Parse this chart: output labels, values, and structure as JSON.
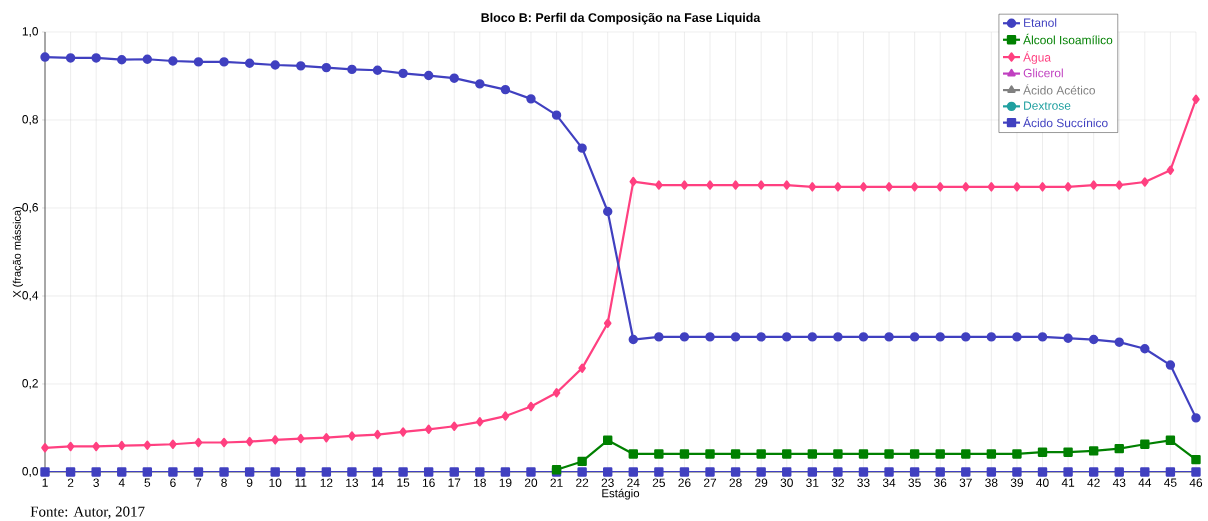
{
  "chart_data": {
    "type": "line",
    "title": "Bloco B: Perfil da Composição na Fase Liquida",
    "xlabel": "Estágio",
    "ylabel": "X (fração mássica)",
    "x": [
      1,
      2,
      3,
      4,
      5,
      6,
      7,
      8,
      9,
      10,
      11,
      12,
      13,
      14,
      15,
      16,
      17,
      18,
      19,
      20,
      21,
      22,
      23,
      24,
      25,
      26,
      27,
      28,
      29,
      30,
      31,
      32,
      33,
      34,
      35,
      36,
      37,
      38,
      39,
      40,
      41,
      42,
      43,
      44,
      45,
      46
    ],
    "series": [
      {
        "name": "Etanol",
        "color": "#4040c0",
        "marker": "circle",
        "values": [
          0.943,
          0.941,
          0.941,
          0.937,
          0.938,
          0.934,
          0.932,
          0.932,
          0.929,
          0.925,
          0.923,
          0.919,
          0.915,
          0.913,
          0.906,
          0.901,
          0.895,
          0.882,
          0.869,
          0.848,
          0.811,
          0.736,
          0.592,
          0.301,
          0.307,
          0.307,
          0.307,
          0.307,
          0.307,
          0.307,
          0.307,
          0.307,
          0.307,
          0.307,
          0.307,
          0.307,
          0.307,
          0.307,
          0.307,
          0.307,
          0.304,
          0.301,
          0.295,
          0.28,
          0.243,
          0.123
        ]
      },
      {
        "name": "Álcool Isoamílico",
        "color": "#008000",
        "marker": "square",
        "values": [
          null,
          null,
          null,
          null,
          null,
          null,
          null,
          null,
          null,
          null,
          null,
          null,
          null,
          null,
          null,
          null,
          null,
          null,
          null,
          null,
          0.005,
          0.024,
          0.072,
          0.041,
          0.041,
          0.041,
          0.041,
          0.041,
          0.041,
          0.041,
          0.041,
          0.041,
          0.041,
          0.041,
          0.041,
          0.041,
          0.041,
          0.041,
          0.041,
          0.045,
          0.045,
          0.048,
          0.053,
          0.063,
          0.072,
          0.028
        ]
      },
      {
        "name": "Água",
        "color": "#ff4080",
        "marker": "diamond",
        "values": [
          0.055,
          0.058,
          0.058,
          0.06,
          0.061,
          0.063,
          0.067,
          0.067,
          0.069,
          0.073,
          0.076,
          0.078,
          0.082,
          0.085,
          0.091,
          0.097,
          0.104,
          0.114,
          0.127,
          0.149,
          0.18,
          0.236,
          0.338,
          0.66,
          0.652,
          0.652,
          0.652,
          0.652,
          0.652,
          0.652,
          0.648,
          0.648,
          0.648,
          0.648,
          0.648,
          0.648,
          0.648,
          0.648,
          0.648,
          0.648,
          0.648,
          0.652,
          0.652,
          0.659,
          0.686,
          0.847
        ]
      },
      {
        "name": "Glicerol",
        "color": "#c040c0",
        "marker": "triangle",
        "values": [
          null,
          null,
          null,
          null,
          null,
          null,
          null,
          null,
          null,
          null,
          null,
          null,
          null,
          null,
          null,
          null,
          null,
          null,
          null,
          null,
          null,
          null,
          null,
          null,
          null,
          null,
          null,
          null,
          null,
          null,
          null,
          null,
          null,
          null,
          null,
          null,
          null,
          null,
          null,
          null,
          null,
          null,
          null,
          null,
          null,
          null
        ]
      },
      {
        "name": "Ácido Acético",
        "color": "#808080",
        "marker": "triangle",
        "values": [
          null,
          null,
          null,
          null,
          null,
          null,
          null,
          null,
          null,
          null,
          null,
          null,
          null,
          null,
          null,
          null,
          null,
          null,
          null,
          null,
          null,
          null,
          null,
          null,
          null,
          null,
          null,
          null,
          null,
          null,
          null,
          null,
          null,
          null,
          null,
          null,
          null,
          null,
          null,
          null,
          null,
          null,
          null,
          null,
          null,
          null
        ]
      },
      {
        "name": "Dextrose",
        "color": "#20a0a0",
        "marker": "circle",
        "values": [
          null,
          null,
          null,
          null,
          null,
          null,
          null,
          null,
          null,
          null,
          null,
          null,
          null,
          null,
          null,
          null,
          null,
          null,
          null,
          null,
          null,
          null,
          null,
          null,
          null,
          null,
          null,
          null,
          null,
          null,
          null,
          null,
          null,
          null,
          null,
          null,
          null,
          null,
          null,
          null,
          null,
          null,
          null,
          null,
          null,
          null
        ]
      },
      {
        "name": "Ácido Succínico",
        "color": "#4040c0",
        "marker": "square",
        "values": [
          0,
          0,
          0,
          0,
          0,
          0,
          0,
          0,
          0,
          0,
          0,
          0,
          0,
          0,
          0,
          0,
          0,
          0,
          0,
          0,
          0,
          0,
          0,
          0,
          0,
          0,
          0,
          0,
          0,
          0,
          0,
          0,
          0,
          0,
          0,
          0,
          0,
          0,
          0,
          0,
          0,
          0,
          0,
          0,
          0,
          0
        ]
      }
    ],
    "xlim": [
      1,
      46
    ],
    "xticks": [
      1,
      2,
      3,
      4,
      5,
      6,
      7,
      8,
      9,
      10,
      11,
      12,
      13,
      14,
      15,
      16,
      17,
      18,
      19,
      20,
      21,
      22,
      23,
      24,
      25,
      26,
      27,
      28,
      29,
      30,
      31,
      32,
      33,
      34,
      35,
      36,
      37,
      38,
      39,
      40,
      41,
      42,
      43,
      44,
      45,
      46
    ],
    "ylim": [
      0,
      1
    ],
    "yticks": [
      {
        "value": 0,
        "label": "0,0"
      },
      {
        "value": 0.2,
        "label": "0,2"
      },
      {
        "value": 0.4,
        "label": "0,4"
      },
      {
        "value": 0.6,
        "label": "0,6"
      },
      {
        "value": 0.8,
        "label": "0,8"
      },
      {
        "value": 1,
        "label": "1,0"
      }
    ],
    "grid": true,
    "legend": "top right",
    "line_style": "solid",
    "annotations": [
      "Fonte: Autor, 2017"
    ]
  }
}
